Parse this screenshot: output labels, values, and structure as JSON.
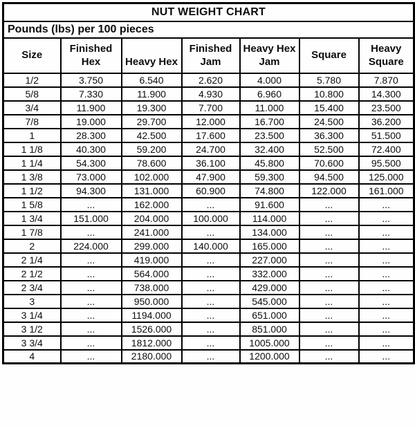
{
  "chart_data": {
    "type": "table",
    "title": "NUT WEIGHT CHART",
    "subtitle": "Pounds (lbs) per 100 pieces",
    "missing_value_marker": "...",
    "columns": [
      "Size",
      "Finished Hex",
      "Heavy Hex",
      "Finished Jam",
      "Heavy Hex Jam",
      "Square",
      "Heavy Square"
    ],
    "rows": [
      [
        "1/2",
        "3.750",
        "6.540",
        "2.620",
        "4.000",
        "5.780",
        "7.870"
      ],
      [
        "5/8",
        "7.330",
        "11.900",
        "4.930",
        "6.960",
        "10.800",
        "14.300"
      ],
      [
        "3/4",
        "11.900",
        "19.300",
        "7.700",
        "11.000",
        "15.400",
        "23.500"
      ],
      [
        "7/8",
        "19.000",
        "29.700",
        "12.000",
        "16.700",
        "24.500",
        "36.200"
      ],
      [
        "1",
        "28.300",
        "42.500",
        "17.600",
        "23.500",
        "36.300",
        "51.500"
      ],
      [
        "1 1/8",
        "40.300",
        "59.200",
        "24.700",
        "32.400",
        "52.500",
        "72.400"
      ],
      [
        "1 1/4",
        "54.300",
        "78.600",
        "36.100",
        "45.800",
        "70.600",
        "95.500"
      ],
      [
        "1 3/8",
        "73.000",
        "102.000",
        "47.900",
        "59.300",
        "94.500",
        "125.000"
      ],
      [
        "1 1/2",
        "94.300",
        "131.000",
        "60.900",
        "74.800",
        "122.000",
        "161.000"
      ],
      [
        "1 5/8",
        "...",
        "162.000",
        "...",
        "91.600",
        "...",
        "..."
      ],
      [
        "1 3/4",
        "151.000",
        "204.000",
        "100.000",
        "114.000",
        "...",
        "..."
      ],
      [
        "1 7/8",
        "...",
        "241.000",
        "...",
        "134.000",
        "...",
        "..."
      ],
      [
        "2",
        "224.000",
        "299.000",
        "140.000",
        "165.000",
        "...",
        "..."
      ],
      [
        "2 1/4",
        "...",
        "419.000",
        "...",
        "227.000",
        "...",
        "..."
      ],
      [
        "2 1/2",
        "...",
        "564.000",
        "...",
        "332.000",
        "...",
        "..."
      ],
      [
        "2 3/4",
        "...",
        "738.000",
        "...",
        "429.000",
        "...",
        "..."
      ],
      [
        "3",
        "...",
        "950.000",
        "...",
        "545.000",
        "...",
        "..."
      ],
      [
        "3 1/4",
        "...",
        "1194.000",
        "...",
        "651.000",
        "...",
        "..."
      ],
      [
        "3 1/2",
        "...",
        "1526.000",
        "...",
        "851.000",
        "...",
        "..."
      ],
      [
        "3 3/4",
        "...",
        "1812.000",
        "...",
        "1005.000",
        "...",
        "..."
      ],
      [
        "4",
        "...",
        "2180.000",
        "...",
        "1200.000",
        "...",
        "..."
      ]
    ]
  },
  "colors": {
    "border": "#000000",
    "text": "#0d0d0d",
    "background": "#fefefe"
  }
}
